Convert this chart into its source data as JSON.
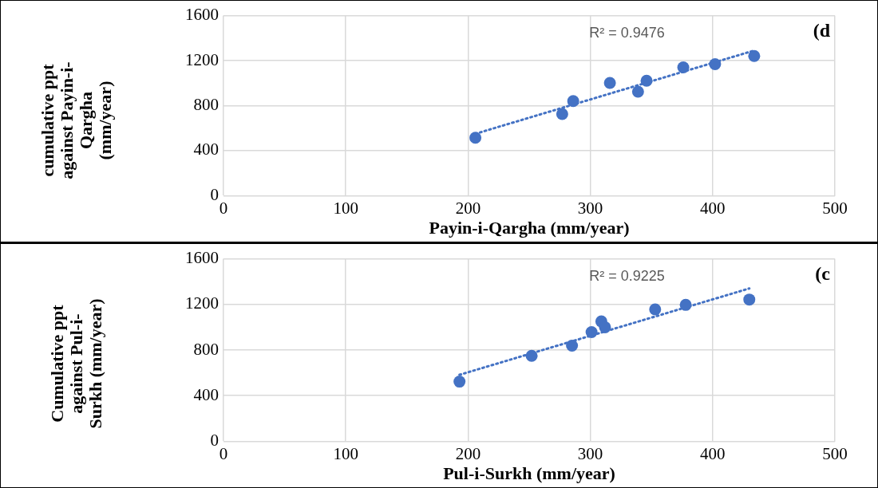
{
  "chart_data": [
    {
      "type": "scatter",
      "title": "(d",
      "xlabel": "Payin-i-Qargha (mm/year)",
      "ylabel": "cumulative  ppt against Payin-i-Qargha (mm/year)",
      "annotations": [
        "R² = 0.9476"
      ],
      "xlim": [
        0,
        500
      ],
      "xticks": [
        0,
        100,
        200,
        300,
        400,
        500
      ],
      "ylim": [
        0,
        1600
      ],
      "yticks": [
        0,
        400,
        800,
        1200,
        1600
      ],
      "grid": true,
      "marker": "circle",
      "series": [
        {
          "color": "#4472c4",
          "x": [
            206,
            277,
            286,
            316,
            339,
            346,
            376,
            402,
            434
          ],
          "values": [
            515,
            726,
            841,
            1002,
            924,
            1021,
            1140,
            1168,
            1241
          ]
        },
        {
          "type": "line",
          "color": "#4472c4",
          "line_style": "dotted",
          "marker": "none",
          "x": [
            206,
            434
          ],
          "values": [
            550,
            1290
          ]
        }
      ]
    },
    {
      "type": "scatter",
      "title": "(c",
      "xlabel": "Pul-i-Surkh (mm/year)",
      "ylabel": "Cumulative ppt against Pul-i-Surkh (mm/year)",
      "annotations": [
        "R² = 0.9225"
      ],
      "xlim": [
        0,
        500
      ],
      "xticks": [
        0,
        100,
        200,
        300,
        400,
        500
      ],
      "ylim": [
        0,
        1600
      ],
      "yticks": [
        0,
        400,
        800,
        1200,
        1600
      ],
      "grid": true,
      "marker": "circle",
      "series": [
        {
          "color": "#4472c4",
          "x": [
            193,
            252,
            285,
            301,
            309,
            312,
            353,
            378,
            430
          ],
          "values": [
            523,
            749,
            838,
            957,
            1051,
            1000,
            1157,
            1196,
            1243
          ]
        },
        {
          "type": "line",
          "color": "#4472c4",
          "line_style": "dotted",
          "marker": "none",
          "x": [
            193,
            430
          ],
          "values": [
            583,
            1340
          ]
        }
      ]
    }
  ]
}
